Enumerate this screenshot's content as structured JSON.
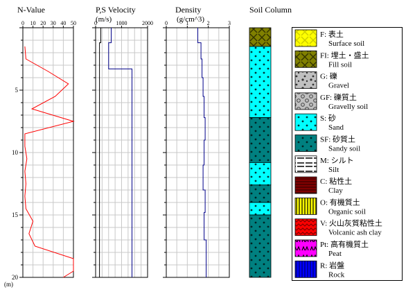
{
  "chart_data": {
    "depth_axis": {
      "min": 0,
      "max": 20,
      "major_ticks": [
        5,
        10,
        15,
        20
      ],
      "unit": "(m)"
    },
    "panels": [
      {
        "id": "nvalue",
        "type": "line",
        "title": "N-Value",
        "xlim": [
          0,
          50
        ],
        "xticks": [
          0,
          10,
          20,
          30,
          40,
          50
        ],
        "series": [
          {
            "color": "#ff0000",
            "points": [
              [
                1.5,
                2
              ],
              [
                2.5,
                3
              ],
              [
                3.5,
                25
              ],
              [
                4.5,
                45
              ],
              [
                5.5,
                32
              ],
              [
                6.5,
                9
              ],
              [
                7.5,
                50
              ],
              [
                8.5,
                2
              ],
              [
                9.5,
                2
              ],
              [
                10.5,
                4
              ],
              [
                11.5,
                2
              ],
              [
                12.5,
                3
              ],
              [
                13.5,
                2
              ],
              [
                14.5,
                3
              ],
              [
                15.5,
                10
              ],
              [
                16.5,
                6
              ],
              [
                17.5,
                12
              ],
              [
                18.5,
                50
              ],
              [
                19.5,
                50
              ],
              [
                20,
                40
              ]
            ]
          }
        ]
      },
      {
        "id": "velocity",
        "type": "step",
        "title": "P,S Velocity",
        "xlabel": "(m/s)",
        "xlim": [
          0,
          2000
        ],
        "xticks": [
          0,
          1000,
          2000
        ],
        "series": [
          {
            "color": "#000000",
            "steps": [
              {
                "top": 0,
                "bottom": 1.2,
                "value": 200
              },
              {
                "top": 1.2,
                "bottom": 20,
                "value": 150
              }
            ]
          },
          {
            "color": "#000088",
            "steps": [
              {
                "top": 0,
                "bottom": 1.2,
                "value": 600
              },
              {
                "top": 1.2,
                "bottom": 3.3,
                "value": 500
              },
              {
                "top": 3.3,
                "bottom": 20,
                "value": 1400
              }
            ]
          }
        ]
      },
      {
        "id": "density",
        "type": "step",
        "title": "Density",
        "xlabel": "(g/cm^3)",
        "xlim": [
          0,
          3
        ],
        "xticks": [
          0,
          1,
          2,
          3
        ],
        "series": [
          {
            "color": "#000088",
            "steps": [
              {
                "top": 0,
                "bottom": 1.2,
                "value": 1.5
              },
              {
                "top": 1.2,
                "bottom": 2.5,
                "value": 1.65
              },
              {
                "top": 2.5,
                "bottom": 4.0,
                "value": 1.7
              },
              {
                "top": 4.0,
                "bottom": 5.5,
                "value": 1.75
              },
              {
                "top": 5.5,
                "bottom": 7.2,
                "value": 1.8
              },
              {
                "top": 7.2,
                "bottom": 9.0,
                "value": 1.85
              },
              {
                "top": 9.0,
                "bottom": 11.0,
                "value": 1.8
              },
              {
                "top": 11.0,
                "bottom": 13.0,
                "value": 1.75
              },
              {
                "top": 13.0,
                "bottom": 14.8,
                "value": 1.85
              },
              {
                "top": 14.8,
                "bottom": 17.0,
                "value": 1.8
              },
              {
                "top": 17.0,
                "bottom": 20,
                "value": 1.9
              }
            ]
          }
        ]
      }
    ],
    "soil_column": {
      "title": "Soil Column",
      "layers": [
        {
          "top": 0,
          "bottom": 1.5,
          "code": "FI"
        },
        {
          "top": 1.5,
          "bottom": 7.2,
          "code": "S"
        },
        {
          "top": 7.2,
          "bottom": 10.8,
          "code": "SF"
        },
        {
          "top": 10.8,
          "bottom": 12.6,
          "code": "S"
        },
        {
          "top": 12.6,
          "bottom": 14.0,
          "code": "SF"
        },
        {
          "top": 14.0,
          "bottom": 15.0,
          "code": "S"
        },
        {
          "top": 15.0,
          "bottom": 20,
          "code": "SF"
        }
      ]
    },
    "legend": [
      {
        "code": "F",
        "label": "F: 表土",
        "english": "Surface soil",
        "fill": "#ffff00",
        "pattern": "x",
        "ink": "#cccc00"
      },
      {
        "code": "FI",
        "label": "FI: 埋土・盛土",
        "english": "Fill soil",
        "fill": "#808000",
        "pattern": "x",
        "ink": "#333300"
      },
      {
        "code": "G",
        "label": "G: 礫",
        "english": "Gravel",
        "fill": "#c0c0c0",
        "pattern": "gravel",
        "ink": "#333333"
      },
      {
        "code": "GF",
        "label": "GF: 礫質土",
        "english": "Gravelly soil",
        "fill": "#c0c0c0",
        "pattern": "circles",
        "ink": "#333333"
      },
      {
        "code": "S",
        "label": "S: 砂",
        "english": "Sand",
        "fill": "#00ffff",
        "pattern": "dots",
        "ink": "#003333"
      },
      {
        "code": "SF",
        "label": "SF: 砂質土",
        "english": "Sandy soil",
        "fill": "#008080",
        "pattern": "dots",
        "ink": "#002222"
      },
      {
        "code": "M",
        "label": "M: シルト",
        "english": "Silt",
        "fill": "#ffffff",
        "pattern": "dashes",
        "ink": "#000000"
      },
      {
        "code": "C",
        "label": "C: 粘性土",
        "english": "Clay",
        "fill": "#800000",
        "pattern": "hlines",
        "ink": "#3a0000"
      },
      {
        "code": "O",
        "label": "O: 有機質土",
        "english": "Organic soil",
        "fill": "#ffff00",
        "pattern": "vlines",
        "ink": "#000000"
      },
      {
        "code": "V",
        "label": "V: 火山灰質粘性土",
        "english": "Volcanic ash clay",
        "fill": "#ff0000",
        "pattern": "wave",
        "ink": "#800000"
      },
      {
        "code": "Pt",
        "label": "Pt: 高有機質土",
        "english": "Peat",
        "fill": "#ff00ff",
        "pattern": "peat",
        "ink": "#000000"
      },
      {
        "code": "R",
        "label": "R: 岩盤",
        "english": "Rock",
        "fill": "#0000ff",
        "pattern": "vlines",
        "ink": "#000066"
      }
    ]
  }
}
